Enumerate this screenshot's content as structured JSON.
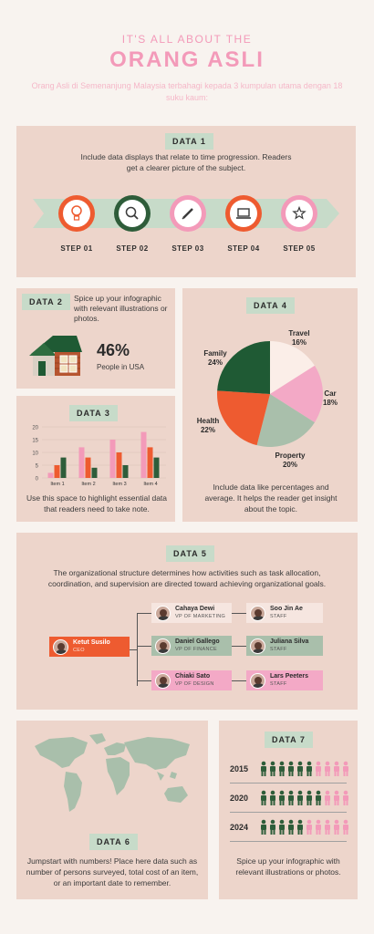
{
  "header": {
    "kicker": "IT'S ALL ABOUT THE",
    "title": "ORANG ASLI",
    "subtitle": "Orang Asli di Semenanjung Malaysia terbahagi kepada 3 kumpulan utama dengan 18 suku kaum:"
  },
  "colors": {
    "pink": "#f39ab9",
    "green": "#2e5d3a",
    "orange": "#ee5b30",
    "sage": "#a9bfab",
    "card": "#edd5cb"
  },
  "data1": {
    "label": "DATA 1",
    "text": "Include data displays that relate to time progression. Readers get a clearer picture of the subject.",
    "steps": [
      {
        "label": "STEP 01",
        "icon": "lightbulb-icon"
      },
      {
        "label": "STEP 02",
        "icon": "search-icon"
      },
      {
        "label": "STEP 03",
        "icon": "pencil-icon"
      },
      {
        "label": "STEP 04",
        "icon": "laptop-icon"
      },
      {
        "label": "STEP 05",
        "icon": "star-icon"
      }
    ]
  },
  "data2": {
    "label": "DATA 2",
    "text": "Spice up your infographic with relevant illustrations or photos.",
    "stat": "46%",
    "stat_label": "People in USA"
  },
  "data3": {
    "label": "DATA 3",
    "text": "Use this space to highlight essential data that readers need to take note."
  },
  "data4": {
    "label": "DATA 4",
    "text": "Include data like percentages and average. It helps the reader get insight about the topic."
  },
  "chart_data": [
    {
      "type": "bar",
      "categories": [
        "Item 1",
        "Item 2",
        "Item 3",
        "Item 4"
      ],
      "ylim": [
        0,
        20
      ],
      "yticks": [
        "0",
        "5",
        "10",
        "15",
        "20"
      ],
      "series": [
        {
          "color": "#f39ab9",
          "values": [
            2,
            12,
            15,
            18
          ]
        },
        {
          "color": "#ee5b30",
          "values": [
            5,
            8,
            10,
            12
          ]
        },
        {
          "color": "#2e5d3a",
          "values": [
            8,
            4,
            5,
            8
          ]
        }
      ]
    },
    {
      "type": "pie",
      "slices": [
        {
          "label": "Travel",
          "value": 16,
          "pct": "16%",
          "color": "#fbeee8"
        },
        {
          "label": "Car",
          "value": 18,
          "pct": "18%",
          "color": "#f3a9c6"
        },
        {
          "label": "Property",
          "value": 20,
          "pct": "20%",
          "color": "#a9bfab"
        },
        {
          "label": "Health",
          "value": 22,
          "pct": "22%",
          "color": "#ee5b30"
        },
        {
          "label": "Family",
          "value": 24,
          "pct": "24%",
          "color": "#1f5a34"
        }
      ]
    }
  ],
  "data5": {
    "label": "DATA 5",
    "text": "The organizational structure determines how activities such as task allocation, coordination, and supervision are directed toward achieving organizational goals.",
    "ceo": {
      "name": "Ketut Susilo",
      "role": "CEO"
    },
    "vps": [
      {
        "name": "Cahaya Dewi",
        "role": "VP OF MARKETING"
      },
      {
        "name": "Daniel Gallego",
        "role": "VP OF FINANCE"
      },
      {
        "name": "Chiaki Sato",
        "role": "VP OF DESIGN"
      }
    ],
    "staff": [
      {
        "name": "Soo Jin Ae",
        "role": "STAFF"
      },
      {
        "name": "Juliana Silva",
        "role": "STAFF"
      },
      {
        "name": "Lars Peeters",
        "role": "STAFF"
      }
    ]
  },
  "data6": {
    "label": "DATA 6",
    "text": "Jumpstart with numbers! Place here data such as number of persons surveyed, total cost of an item, or an important date to remember."
  },
  "data7": {
    "label": "DATA 7",
    "text": "Spice up your infographic with relevant illustrations or photos.",
    "years": [
      {
        "year": "2015",
        "filled": 6,
        "total": 10
      },
      {
        "year": "2020",
        "filled": 7,
        "total": 10
      },
      {
        "year": "2024",
        "filled": 5,
        "total": 10
      }
    ]
  }
}
